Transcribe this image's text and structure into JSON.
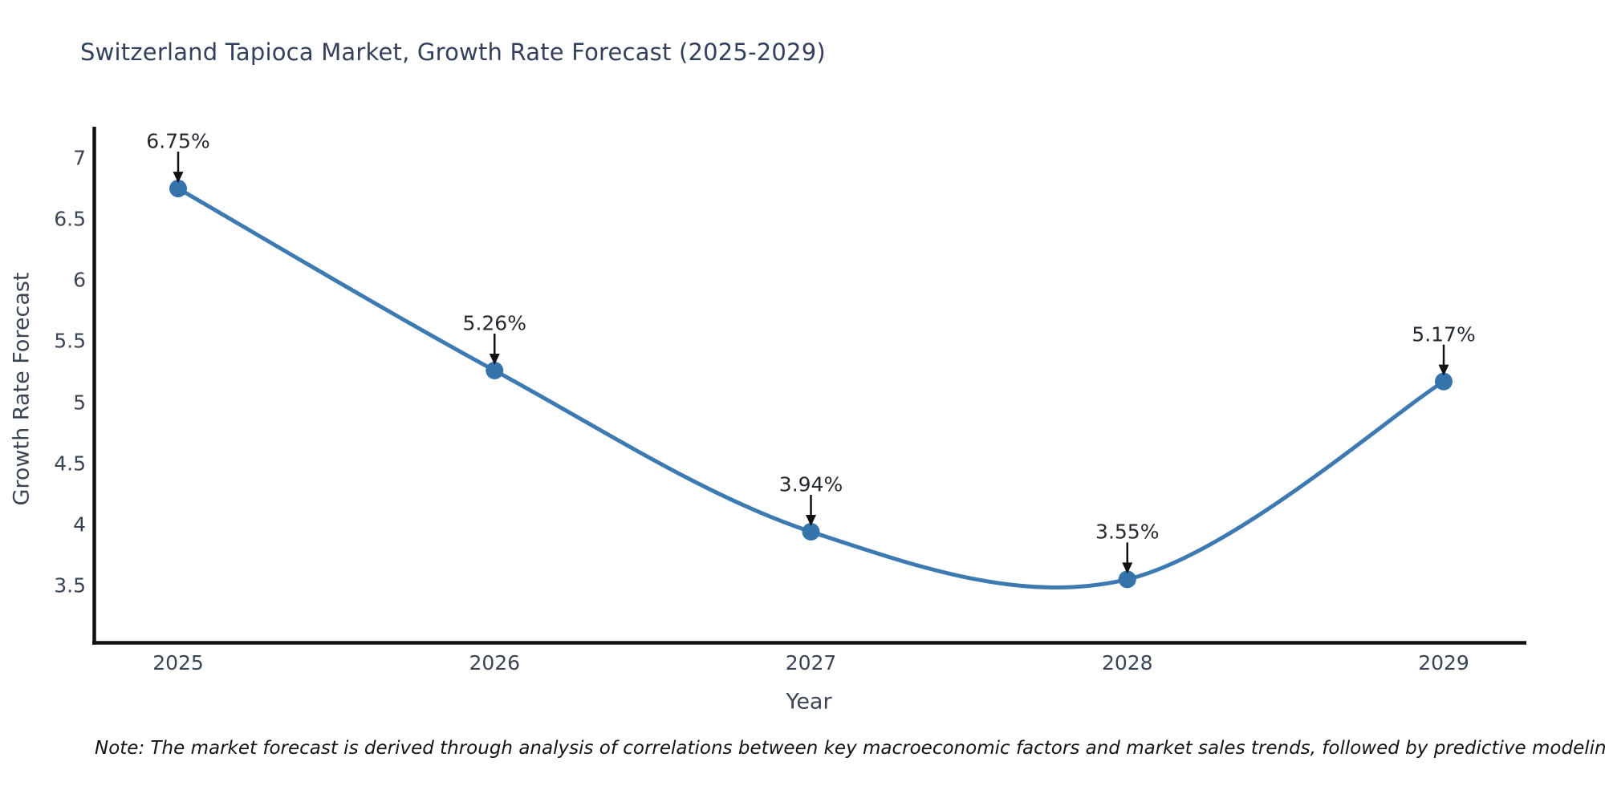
{
  "title": "Switzerland Tapioca Market, Growth Rate Forecast (2025-2029)",
  "note": "Note: The market forecast is derived through analysis of correlations between key macroeconomic factors and market sales trends, followed by predictive modeling to project future sales",
  "chart_data": {
    "type": "line",
    "title": "Switzerland Tapioca Market, Growth Rate Forecast (2025-2029)",
    "xlabel": "Year",
    "ylabel": "Growth Rate Forecast",
    "x": [
      2025,
      2026,
      2027,
      2028,
      2029
    ],
    "values": [
      6.75,
      5.26,
      3.94,
      3.55,
      5.17
    ],
    "point_labels": [
      "6.75%",
      "5.26%",
      "3.94%",
      "3.55%",
      "5.17%"
    ],
    "yticks": [
      3.5,
      4,
      4.5,
      5,
      5.5,
      6,
      6.5,
      7
    ],
    "ylim": [
      3.0,
      7.25
    ],
    "line_shape": "spline",
    "grid": false,
    "legend": null,
    "annotation_style": "down-arrow",
    "colors": {
      "line": "#3d7ab1",
      "marker": "#3574ab",
      "axis": "#111111",
      "title_text": "#33415c",
      "tick_text": "#3a4454",
      "annotation_text": "#24292f",
      "note_text": "#141414"
    }
  }
}
